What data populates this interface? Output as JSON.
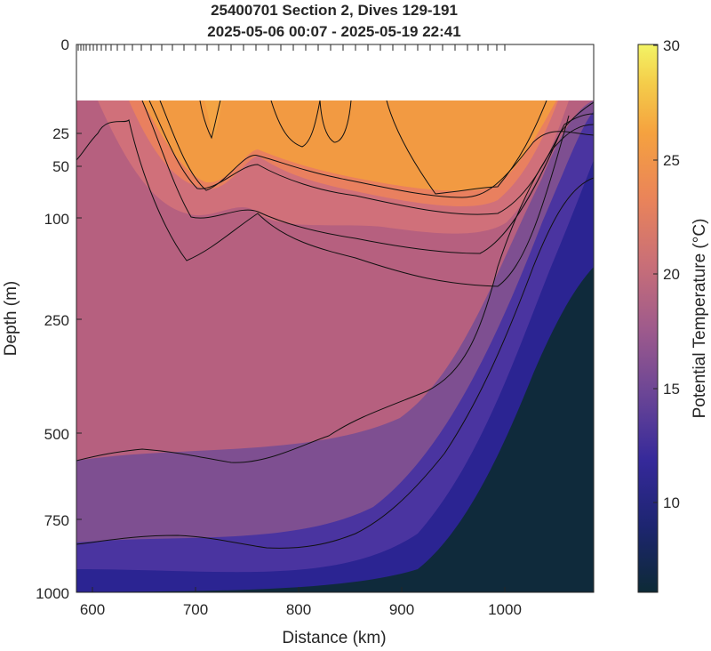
{
  "chart_data": {
    "type": "heatmap",
    "title": "25400701 Section 2, Dives 129-191",
    "subtitle": "2025-05-06 00:07 - 2025-05-19 22:41",
    "xlabel": "Distance (km)",
    "ylabel": "Depth (m)",
    "colorbar_label": "Potential Temperature (°C)",
    "xlim": [
      582,
      1085
    ],
    "ylim": [
      1000,
      0
    ],
    "y_scale": "nonlinear (stretched near surface)",
    "x_ticks": [
      "600",
      "700",
      "800",
      "900",
      "1000"
    ],
    "y_ticks": [
      "0",
      "25",
      "50",
      "100",
      "250",
      "500",
      "750",
      "1000"
    ],
    "colorbar_ticks": [
      "10",
      "15",
      "20",
      "25",
      "30"
    ],
    "clim": [
      6,
      30
    ],
    "colormap": [
      "#0d2a36",
      "#2a1f87",
      "#5a3d9a",
      "#9a5a8e",
      "#c9707a",
      "#e8825f",
      "#f39a3e",
      "#f5c24a",
      "#f3f062"
    ],
    "surface_data_gap_depth_m": 15,
    "dive_tick_marks_top": true,
    "contours_degC": [
      12,
      14,
      16,
      18,
      20,
      22,
      24,
      26
    ],
    "grid": false
  }
}
